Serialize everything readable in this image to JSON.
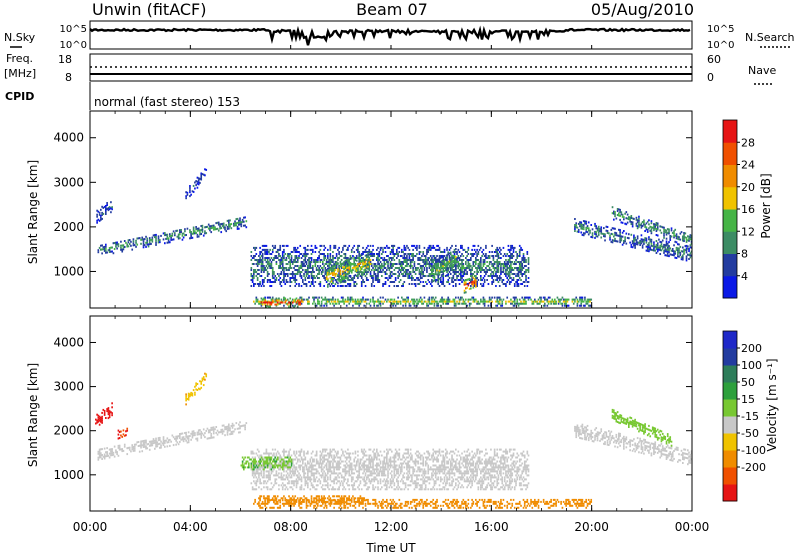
{
  "header": {
    "station": "Unwin (fitACF)",
    "beam": "Beam 07",
    "date": "05/Aug/2010"
  },
  "noise_panel": {
    "left_label": "N.Sky",
    "right_label": "N.Search",
    "left_ticks": [
      "10^5",
      "10^0"
    ],
    "right_ticks": [
      "10^5",
      "10^0"
    ]
  },
  "freq_panel": {
    "left_label_line1": "Freq.",
    "left_label_line2": "[MHz]",
    "right_label": "Nave",
    "left_ticks": [
      "18",
      "8"
    ],
    "right_ticks": [
      "60",
      "0"
    ]
  },
  "cpid": {
    "label": "CPID",
    "text": "normal (fast stereo) 153"
  },
  "colors": {
    "power": [
      "#0a19e6",
      "#233ca0",
      "#3c8c64",
      "#46b446",
      "#f0c300",
      "#f08c00",
      "#f05000",
      "#e61414"
    ],
    "velocity": [
      "#e61414",
      "#f05000",
      "#f08c00",
      "#f0c300",
      "#c8c8c8",
      "#78c832",
      "#2da03c",
      "#2d7d5a",
      "#233ca0",
      "#1e28c8"
    ]
  },
  "chart_data": [
    {
      "type": "heatmap",
      "title": "",
      "quantity": "Power",
      "xlabel": "",
      "ylabel": "Slant Range [km]",
      "x_ticks": [
        "00:00",
        "04:00",
        "08:00",
        "12:00",
        "16:00",
        "20:00",
        "00:00"
      ],
      "y_ticks": [
        "1000",
        "2000",
        "3000",
        "4000"
      ],
      "xlim": [
        0,
        24
      ],
      "ylim": [
        180,
        4600
      ],
      "colorbar": {
        "label": "Power [dB]",
        "ticks": [
          "4",
          "8",
          "12",
          "16",
          "20",
          "24",
          "28"
        ],
        "range": [
          0,
          32
        ]
      },
      "echo_regions": [
        {
          "t": [
            0.3,
            6.2
          ],
          "r0": 1450,
          "r1": 2100,
          "width": 260,
          "level": 0.35
        },
        {
          "t": [
            0.2,
            0.9
          ],
          "r0": 2200,
          "r1": 2500,
          "width": 300,
          "level": 0.25
        },
        {
          "t": [
            3.8,
            4.6
          ],
          "r0": 2700,
          "r1": 3200,
          "width": 250,
          "level": 0.15
        },
        {
          "t": [
            6.4,
            17.5
          ],
          "r0": 1100,
          "r1": 1100,
          "width": 900,
          "level": 0.3
        },
        {
          "t": [
            9.4,
            11.2
          ],
          "r0": 850,
          "r1": 1200,
          "width": 450,
          "level": 0.6
        },
        {
          "t": [
            13.6,
            14.6
          ],
          "r0": 900,
          "r1": 1300,
          "width": 500,
          "level": 0.45
        },
        {
          "t": [
            14.9,
            15.4
          ],
          "r0": 650,
          "r1": 750,
          "width": 300,
          "level": 0.9
        },
        {
          "t": [
            6.5,
            20.0
          ],
          "r0": 300,
          "r1": 300,
          "width": 180,
          "level": 0.5
        },
        {
          "t": [
            6.8,
            8.4
          ],
          "r0": 280,
          "r1": 280,
          "width": 180,
          "level": 0.95
        },
        {
          "t": [
            19.3,
            24.0
          ],
          "r0": 2000,
          "r1": 1350,
          "width": 320,
          "level": 0.3
        },
        {
          "t": [
            20.8,
            24.0
          ],
          "r0": 2300,
          "r1": 1650,
          "width": 300,
          "level": 0.35
        }
      ]
    },
    {
      "type": "heatmap",
      "title": "",
      "quantity": "Velocity",
      "xlabel": "Time UT",
      "ylabel": "Slant Range [km]",
      "x_ticks": [
        "00:00",
        "04:00",
        "08:00",
        "12:00",
        "16:00",
        "20:00",
        "00:00"
      ],
      "y_ticks": [
        "1000",
        "2000",
        "3000",
        "4000"
      ],
      "xlim": [
        0,
        24
      ],
      "ylim": [
        180,
        4600
      ],
      "colorbar": {
        "label": "Velocity [m s⁻¹]",
        "ticks": [
          "200",
          "100",
          "50",
          "15",
          "-15",
          "-50",
          "-100",
          "-200"
        ],
        "range": [
          -250,
          250
        ]
      },
      "echo_regions": [
        {
          "t": [
            0.3,
            6.2
          ],
          "r0": 1450,
          "r1": 2100,
          "width": 260,
          "vel": 0
        },
        {
          "t": [
            0.2,
            0.9
          ],
          "r0": 2200,
          "r1": 2500,
          "width": 300,
          "vel": -230
        },
        {
          "t": [
            1.1,
            1.5
          ],
          "r0": 1900,
          "r1": 2000,
          "width": 200,
          "vel": -200
        },
        {
          "t": [
            3.8,
            4.6
          ],
          "r0": 2700,
          "r1": 3200,
          "width": 250,
          "vel": -40
        },
        {
          "t": [
            6.4,
            17.5
          ],
          "r0": 1100,
          "r1": 1100,
          "width": 900,
          "vel": 0
        },
        {
          "t": [
            6.0,
            8.0
          ],
          "r0": 1250,
          "r1": 1250,
          "width": 300,
          "vel": 40
        },
        {
          "t": [
            6.5,
            20.0
          ],
          "r0": 330,
          "r1": 330,
          "width": 200,
          "vel": -70
        },
        {
          "t": [
            6.7,
            11.0
          ],
          "r0": 430,
          "r1": 430,
          "width": 150,
          "vel": -80
        },
        {
          "t": [
            19.3,
            24.0
          ],
          "r0": 2000,
          "r1": 1350,
          "width": 320,
          "vel": 0
        },
        {
          "t": [
            20.8,
            23.2
          ],
          "r0": 2350,
          "r1": 1750,
          "width": 250,
          "vel": 30
        }
      ]
    }
  ]
}
